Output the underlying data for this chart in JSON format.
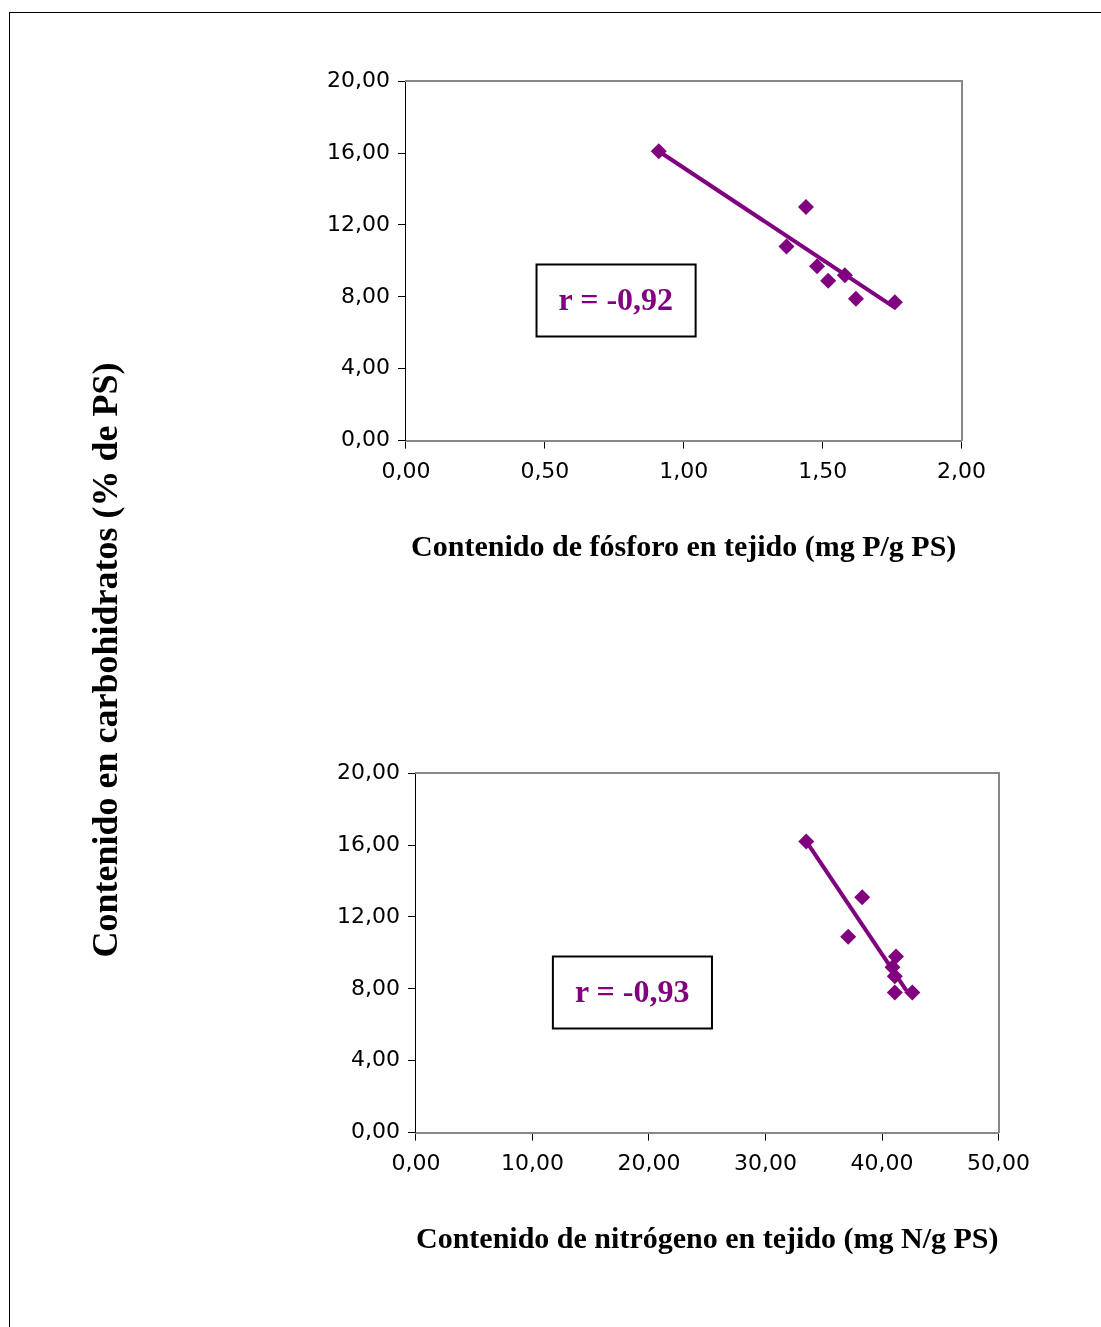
{
  "chart_data": [
    {
      "type": "scatter",
      "ylabel": "Contenido en carbohidratos (% de  PS)",
      "xlabel": "Contenido de fósforo en tejido (mg P/g PS)",
      "annotations": [
        "r = -0,92"
      ],
      "grid": false,
      "xlim": [
        0,
        2
      ],
      "xticks": [
        {
          "value": 0,
          "label": "0,00"
        },
        {
          "value": 0.5,
          "label": "0,50"
        },
        {
          "value": 1,
          "label": "1,00"
        },
        {
          "value": 1.5,
          "label": "1,50"
        },
        {
          "value": 2,
          "label": "2,00"
        }
      ],
      "ylim": [
        0,
        20
      ],
      "yticks": [
        {
          "value": 0,
          "label": "0,00"
        },
        {
          "value": 4,
          "label": "4,00"
        },
        {
          "value": 8,
          "label": "8,00"
        },
        {
          "value": 12,
          "label": "12,00"
        },
        {
          "value": 16,
          "label": "16,00"
        },
        {
          "value": 20,
          "label": "20,00"
        }
      ],
      "series": [
        {
          "marker": "diamond",
          "color": "#800080",
          "x": [
            0.91,
            1.44,
            1.37,
            1.48,
            1.52,
            1.58,
            1.62,
            1.76
          ],
          "values": [
            16.1,
            13.0,
            10.8,
            9.7,
            8.9,
            9.2,
            7.9,
            7.7
          ]
        },
        {
          "type": "line",
          "marker": "none",
          "color": "#800080",
          "x": [
            0.91,
            1.76
          ],
          "values": [
            16.1,
            7.4
          ]
        }
      ]
    },
    {
      "type": "scatter",
      "xlabel": "Contenido de nitrógeno en tejido (mg N/g PS)",
      "annotations": [
        "r = -0,93"
      ],
      "grid": false,
      "xlim": [
        0,
        50
      ],
      "xticks": [
        {
          "value": 0,
          "label": "0,00"
        },
        {
          "value": 10,
          "label": "10,00"
        },
        {
          "value": 20,
          "label": "20,00"
        },
        {
          "value": 30,
          "label": "30,00"
        },
        {
          "value": 40,
          "label": "40,00"
        },
        {
          "value": 50,
          "label": "50,00"
        }
      ],
      "ylim": [
        0,
        20
      ],
      "yticks": [
        {
          "value": 0,
          "label": "0,00"
        },
        {
          "value": 4,
          "label": "4,00"
        },
        {
          "value": 8,
          "label": "8,00"
        },
        {
          "value": 12,
          "label": "12,00"
        },
        {
          "value": 16,
          "label": "16,00"
        },
        {
          "value": 20,
          "label": "20,00"
        }
      ],
      "series": [
        {
          "marker": "diamond",
          "color": "#800080",
          "x": [
            33.5,
            38.3,
            37.1,
            41.2,
            40.9,
            41.1,
            41.1,
            42.6
          ],
          "values": [
            16.2,
            13.1,
            10.9,
            9.8,
            9.2,
            8.7,
            7.8,
            7.8
          ]
        },
        {
          "type": "line",
          "marker": "none",
          "color": "#800080",
          "x": [
            33.5,
            42.1
          ],
          "values": [
            16.2,
            7.9
          ]
        }
      ]
    }
  ]
}
